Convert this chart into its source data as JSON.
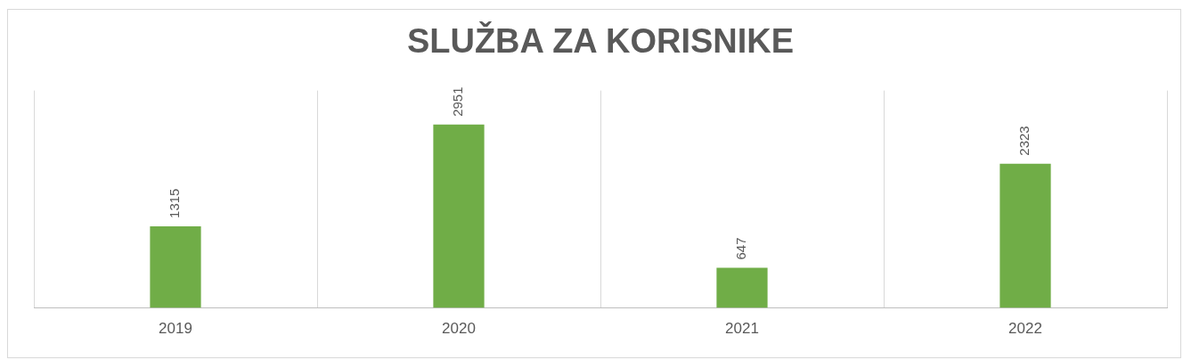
{
  "chart_data": {
    "type": "bar",
    "title": "SLUŽBA ZA KORISNIKE",
    "categories": [
      "2019",
      "2020",
      "2021",
      "2022"
    ],
    "values": [
      1315,
      2951,
      647,
      2323
    ],
    "color": "#70ad47",
    "data_labels": true,
    "grid": "x",
    "legend": false
  }
}
